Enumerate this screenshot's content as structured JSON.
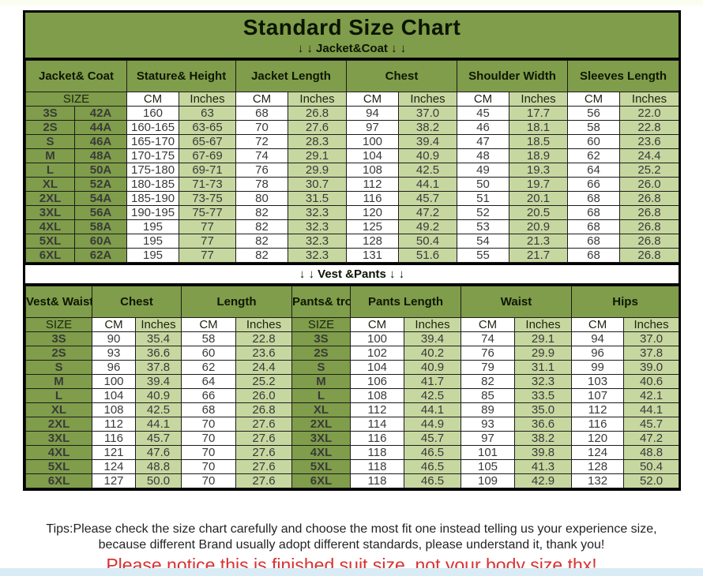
{
  "title": "Standard Size Chart",
  "colors": {
    "olive_green": "#7f9d4a",
    "light_green": "#c7d7a0",
    "border_black": "#000000",
    "notice_red": "#d83232"
  },
  "footer": {
    "tips_line1": "Tips:Please check the size chart carefully and choose the most fit one instead telling us your experience size,",
    "tips_line2": "because different Brand usually adopt different standards, please understand it, thank you!",
    "notice": "Please notice this is finished suit size, not your body size,thx!"
  },
  "chart_data": [
    {
      "type": "table",
      "section": "Jacket&Coat",
      "band_label": "↓ ↓  Jacket&Coat ↓ ↓",
      "column_groups": [
        {
          "label": "Jacket&\nCoat",
          "span": 2
        },
        {
          "label": "Stature&\nHeight",
          "span": 2
        },
        {
          "label": "Jacket\nLength",
          "span": 2
        },
        {
          "label": "Chest",
          "span": 2
        },
        {
          "label": "Shoulder\nWidth",
          "span": 2
        },
        {
          "label": "Sleeves\nLength",
          "span": 2
        }
      ],
      "subheader": [
        "SIZE",
        "CM",
        "Inches",
        "CM",
        "Inches",
        "CM",
        "Inches",
        "CM",
        "Inches",
        "CM",
        "Inches"
      ],
      "rows": [
        [
          "3S",
          "42A",
          "160",
          "63",
          "68",
          "26.8",
          "94",
          "37.0",
          "45",
          "17.7",
          "56",
          "22.0"
        ],
        [
          "2S",
          "44A",
          "160-165",
          "63-65",
          "70",
          "27.6",
          "97",
          "38.2",
          "46",
          "18.1",
          "58",
          "22.8"
        ],
        [
          "S",
          "46A",
          "165-170",
          "65-67",
          "72",
          "28.3",
          "100",
          "39.4",
          "47",
          "18.5",
          "60",
          "23.6"
        ],
        [
          "M",
          "48A",
          "170-175",
          "67-69",
          "74",
          "29.1",
          "104",
          "40.9",
          "48",
          "18.9",
          "62",
          "24.4"
        ],
        [
          "L",
          "50A",
          "175-180",
          "69-71",
          "76",
          "29.9",
          "108",
          "42.5",
          "49",
          "19.3",
          "64",
          "25.2"
        ],
        [
          "XL",
          "52A",
          "180-185",
          "71-73",
          "78",
          "30.7",
          "112",
          "44.1",
          "50",
          "19.7",
          "66",
          "26.0"
        ],
        [
          "2XL",
          "54A",
          "185-190",
          "73-75",
          "80",
          "31.5",
          "116",
          "45.7",
          "51",
          "20.1",
          "68",
          "26.8"
        ],
        [
          "3XL",
          "56A",
          "190-195",
          "75-77",
          "82",
          "32.3",
          "120",
          "47.2",
          "52",
          "20.5",
          "68",
          "26.8"
        ],
        [
          "4XL",
          "58A",
          "195",
          "77",
          "82",
          "32.3",
          "125",
          "49.2",
          "53",
          "20.9",
          "68",
          "26.8"
        ],
        [
          "5XL",
          "60A",
          "195",
          "77",
          "82",
          "32.3",
          "128",
          "50.4",
          "54",
          "21.3",
          "68",
          "26.8"
        ],
        [
          "6XL",
          "62A",
          "195",
          "77",
          "82",
          "32.3",
          "131",
          "51.6",
          "55",
          "21.7",
          "68",
          "26.8"
        ]
      ]
    },
    {
      "type": "table",
      "section": "Vest&Pants",
      "band_label": "↓ ↓  Vest &Pants ↓ ↓",
      "column_groups": [
        {
          "label": "Vest&\nWaistcoat",
          "span": 1
        },
        {
          "label": "Chest",
          "span": 2
        },
        {
          "label": "Length",
          "span": 2
        },
        {
          "label": "Pants&\ntrousers",
          "span": 1
        },
        {
          "label": "Pants\nLength",
          "span": 2
        },
        {
          "label": "Waist",
          "span": 2
        },
        {
          "label": "Hips",
          "span": 2
        }
      ],
      "subheader": [
        "SIZE",
        "CM",
        "Inches",
        "CM",
        "Inches",
        "SIZE",
        "CM",
        "Inches",
        "CM",
        "Inches",
        "CM",
        "Inches"
      ],
      "rows": [
        [
          "3S",
          "90",
          "35.4",
          "58",
          "22.8",
          "3S",
          "100",
          "39.4",
          "74",
          "29.1",
          "94",
          "37.0"
        ],
        [
          "2S",
          "93",
          "36.6",
          "60",
          "23.6",
          "2S",
          "102",
          "40.2",
          "76",
          "29.9",
          "96",
          "37.8"
        ],
        [
          "S",
          "96",
          "37.8",
          "62",
          "24.4",
          "S",
          "104",
          "40.9",
          "79",
          "31.1",
          "99",
          "39.0"
        ],
        [
          "M",
          "100",
          "39.4",
          "64",
          "25.2",
          "M",
          "106",
          "41.7",
          "82",
          "32.3",
          "103",
          "40.6"
        ],
        [
          "L",
          "104",
          "40.9",
          "66",
          "26.0",
          "L",
          "108",
          "42.5",
          "85",
          "33.5",
          "107",
          "42.1"
        ],
        [
          "XL",
          "108",
          "42.5",
          "68",
          "26.8",
          "XL",
          "112",
          "44.1",
          "89",
          "35.0",
          "112",
          "44.1"
        ],
        [
          "2XL",
          "112",
          "44.1",
          "70",
          "27.6",
          "2XL",
          "114",
          "44.9",
          "93",
          "36.6",
          "116",
          "45.7"
        ],
        [
          "3XL",
          "116",
          "45.7",
          "70",
          "27.6",
          "3XL",
          "116",
          "45.7",
          "97",
          "38.2",
          "120",
          "47.2"
        ],
        [
          "4XL",
          "121",
          "47.6",
          "70",
          "27.6",
          "4XL",
          "118",
          "46.5",
          "101",
          "39.8",
          "124",
          "48.8"
        ],
        [
          "5XL",
          "124",
          "48.8",
          "70",
          "27.6",
          "5XL",
          "118",
          "46.5",
          "105",
          "41.3",
          "128",
          "50.4"
        ],
        [
          "6XL",
          "127",
          "50.0",
          "70",
          "27.6",
          "6XL",
          "118",
          "46.5",
          "109",
          "42.9",
          "132",
          "52.0"
        ]
      ]
    }
  ]
}
